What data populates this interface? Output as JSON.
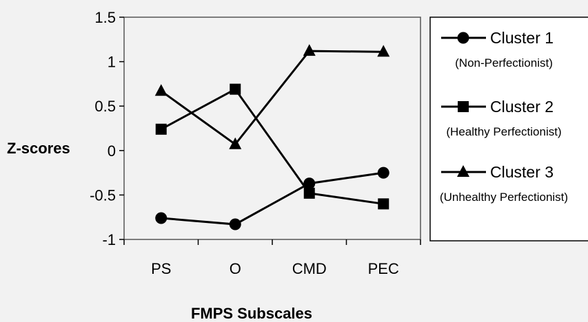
{
  "chart_data": {
    "type": "line",
    "title": "",
    "xlabel": "FMPS Subscales",
    "ylabel": "Z-scores",
    "categories": [
      "PS",
      "O",
      "CMD",
      "PEC"
    ],
    "ylim": [
      -1,
      1.5
    ],
    "yticks": [
      "1.5",
      "1",
      "0.5",
      "0",
      "-0.5",
      "-1"
    ],
    "ytick_values": [
      1.5,
      1,
      0.5,
      0,
      -0.5,
      -1
    ],
    "grid": false,
    "legend_position": "right",
    "series": [
      {
        "name": "Cluster 1",
        "subtitle": "(Non-Perfectionist)",
        "marker": "circle",
        "values": [
          -0.76,
          -0.83,
          -0.37,
          -0.25
        ]
      },
      {
        "name": "Cluster 2",
        "subtitle": "(Healthy Perfectionist)",
        "marker": "square",
        "values": [
          0.24,
          0.69,
          -0.48,
          -0.6
        ]
      },
      {
        "name": "Cluster 3",
        "subtitle": "(Unhealthy Perfectionist)",
        "marker": "triangle",
        "values": [
          0.67,
          0.07,
          1.12,
          1.11
        ]
      }
    ]
  },
  "colors": {
    "line": "#000000",
    "plot_background": "#f2f2f2",
    "legend_background": "#ffffff"
  }
}
